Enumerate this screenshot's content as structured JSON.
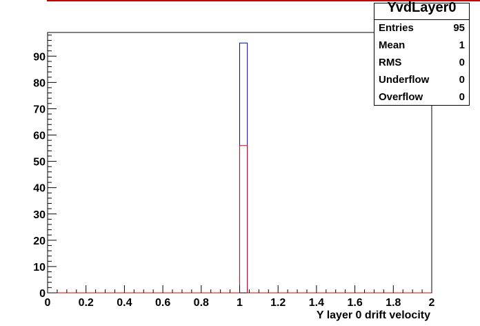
{
  "chart_data": {
    "type": "bar",
    "title": "",
    "xlabel": "Y layer 0 drift velocity",
    "ylabel": "",
    "xlim": [
      0,
      2
    ],
    "ylim": [
      0,
      99
    ],
    "x_ticks": [
      0,
      0.2,
      0.4,
      0.6,
      0.8,
      1,
      1.2,
      1.4,
      1.6,
      1.8,
      2
    ],
    "x_tick_labels": [
      "0",
      "0.2",
      "0.4",
      "0.6",
      "0.8",
      "1",
      "1.2",
      "1.4",
      "1.6",
      "1.8",
      "2"
    ],
    "y_ticks": [
      0,
      10,
      20,
      30,
      40,
      50,
      60,
      70,
      80,
      90
    ],
    "y_tick_labels": [
      "0",
      "10",
      "20",
      "30",
      "40",
      "50",
      "60",
      "70",
      "80",
      "90"
    ],
    "grid": false,
    "legend": "none",
    "series": [
      {
        "color": "#0000cc",
        "bins": [
          {
            "x0": 1.0,
            "x1": 1.04,
            "value": 95
          }
        ]
      },
      {
        "color": "#dd0000",
        "bins": [
          {
            "x0": 1.0,
            "x1": 1.04,
            "value": 56
          }
        ]
      }
    ]
  },
  "stats": {
    "title": "YvdLayer0",
    "rows": [
      {
        "label": "Entries",
        "value": "95"
      },
      {
        "label": "Mean",
        "value": "1"
      },
      {
        "label": "RMS",
        "value": "0"
      },
      {
        "label": "Underflow",
        "value": "0"
      },
      {
        "label": "Overflow",
        "value": "0"
      }
    ]
  },
  "colors": {
    "top_line": "#c00000",
    "axis": "#000000"
  }
}
